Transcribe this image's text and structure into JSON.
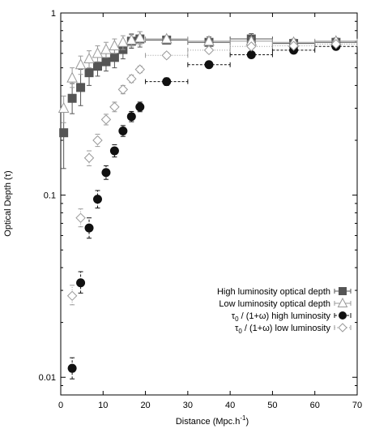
{
  "chart_data": {
    "type": "scatter",
    "xlabel": "Distance (Mpc.h",
    "xlabel_sup": "-1",
    "xlabel_close": ")",
    "ylabel": "Optical Depth (τ)",
    "xlim": [
      0,
      70
    ],
    "ylim": [
      0.008,
      1
    ],
    "yscale": "log",
    "x_ticks": [
      "0",
      "10",
      "20",
      "30",
      "40",
      "50",
      "60",
      "70"
    ],
    "y_ticks": [
      "0.01",
      "0.1",
      "1"
    ],
    "legend_position": "lower-right",
    "series": [
      {
        "name": "High luminosity optical depth",
        "marker": "filled-square",
        "color": "#555555",
        "line": "solid",
        "points": [
          {
            "x": 0.7,
            "y": 0.22,
            "ylo": 0.14,
            "yhi": 0.29
          },
          {
            "x": 2.7,
            "y": 0.34,
            "ylo": 0.28,
            "yhi": 0.41
          },
          {
            "x": 4.7,
            "y": 0.39,
            "ylo": 0.31,
            "yhi": 0.49
          },
          {
            "x": 6.7,
            "y": 0.47,
            "ylo": 0.4,
            "yhi": 0.55
          },
          {
            "x": 8.7,
            "y": 0.51,
            "ylo": 0.45,
            "yhi": 0.58
          },
          {
            "x": 10.7,
            "y": 0.54,
            "ylo": 0.48,
            "yhi": 0.61
          },
          {
            "x": 12.7,
            "y": 0.57,
            "ylo": 0.5,
            "yhi": 0.63
          },
          {
            "x": 14.7,
            "y": 0.63,
            "ylo": 0.56,
            "yhi": 0.7
          },
          {
            "x": 16.7,
            "y": 0.7,
            "ylo": 0.64,
            "yhi": 0.76
          },
          {
            "x": 18.7,
            "y": 0.72,
            "ylo": 0.65,
            "yhi": 0.79
          },
          {
            "x": 25,
            "y": 0.71,
            "xlo": 20,
            "xhi": 30,
            "ylo": 0.68,
            "yhi": 0.74
          },
          {
            "x": 35,
            "y": 0.69,
            "xlo": 30,
            "xhi": 40,
            "ylo": 0.64,
            "yhi": 0.74
          },
          {
            "x": 45,
            "y": 0.72,
            "xlo": 40,
            "xhi": 50,
            "ylo": 0.67,
            "yhi": 0.77
          },
          {
            "x": 55,
            "y": 0.68,
            "xlo": 50,
            "xhi": 60,
            "ylo": 0.64,
            "yhi": 0.72
          },
          {
            "x": 65,
            "y": 0.69,
            "xlo": 60,
            "xhi": 70,
            "ylo": 0.65,
            "yhi": 0.73
          }
        ]
      },
      {
        "name": "Low luminosity optical depth",
        "marker": "open-triangle",
        "color": "#999999",
        "line": "solid",
        "points": [
          {
            "x": 0.7,
            "y": 0.3,
            "ylo": 0.25,
            "yhi": 0.35
          },
          {
            "x": 2.7,
            "y": 0.44,
            "ylo": 0.39,
            "yhi": 0.5
          },
          {
            "x": 4.7,
            "y": 0.52,
            "ylo": 0.46,
            "yhi": 0.58
          },
          {
            "x": 6.7,
            "y": 0.56,
            "ylo": 0.5,
            "yhi": 0.62
          },
          {
            "x": 8.7,
            "y": 0.6,
            "ylo": 0.54,
            "yhi": 0.66
          },
          {
            "x": 10.7,
            "y": 0.63,
            "ylo": 0.57,
            "yhi": 0.69
          },
          {
            "x": 12.7,
            "y": 0.66,
            "ylo": 0.6,
            "yhi": 0.72
          },
          {
            "x": 14.7,
            "y": 0.69,
            "ylo": 0.63,
            "yhi": 0.75
          },
          {
            "x": 16.7,
            "y": 0.71,
            "ylo": 0.65,
            "yhi": 0.77
          },
          {
            "x": 18.7,
            "y": 0.73,
            "ylo": 0.67,
            "yhi": 0.79
          },
          {
            "x": 25,
            "y": 0.72,
            "xlo": 20,
            "xhi": 30,
            "ylo": 0.69,
            "yhi": 0.75
          },
          {
            "x": 35,
            "y": 0.7,
            "xlo": 30,
            "xhi": 40,
            "ylo": 0.67,
            "yhi": 0.73
          },
          {
            "x": 45,
            "y": 0.7,
            "xlo": 40,
            "xhi": 50,
            "ylo": 0.67,
            "yhi": 0.73
          },
          {
            "x": 55,
            "y": 0.69,
            "xlo": 50,
            "xhi": 60,
            "ylo": 0.66,
            "yhi": 0.72
          },
          {
            "x": 65,
            "y": 0.7,
            "xlo": 60,
            "xhi": 70,
            "ylo": 0.67,
            "yhi": 0.73
          }
        ]
      },
      {
        "name": "τ0 / (1+ω) high luminosity",
        "legend_main": "τ",
        "legend_sub": "0",
        "legend_rest": " / (1+ω) high luminosity",
        "marker": "filled-circle",
        "color": "#111111",
        "line": "dashed",
        "points": [
          {
            "x": 2.7,
            "y": 0.0112,
            "ylo": 0.0098,
            "yhi": 0.0128
          },
          {
            "x": 4.7,
            "y": 0.033,
            "ylo": 0.029,
            "yhi": 0.038
          },
          {
            "x": 6.7,
            "y": 0.066,
            "ylo": 0.058,
            "yhi": 0.075
          },
          {
            "x": 8.7,
            "y": 0.095,
            "ylo": 0.085,
            "yhi": 0.106
          },
          {
            "x": 10.7,
            "y": 0.133,
            "ylo": 0.122,
            "yhi": 0.145
          },
          {
            "x": 12.7,
            "y": 0.175,
            "ylo": 0.162,
            "yhi": 0.189
          },
          {
            "x": 14.7,
            "y": 0.225,
            "ylo": 0.21,
            "yhi": 0.241
          },
          {
            "x": 16.7,
            "y": 0.27,
            "ylo": 0.253,
            "yhi": 0.288
          },
          {
            "x": 18.7,
            "y": 0.305,
            "ylo": 0.287,
            "yhi": 0.324
          },
          {
            "x": 25,
            "y": 0.42,
            "xlo": 20,
            "xhi": 30,
            "ylo": 0.4,
            "yhi": 0.44
          },
          {
            "x": 35,
            "y": 0.52,
            "xlo": 30,
            "xhi": 40,
            "ylo": 0.5,
            "yhi": 0.54
          },
          {
            "x": 45,
            "y": 0.59,
            "xlo": 40,
            "xhi": 50,
            "ylo": 0.57,
            "yhi": 0.61
          },
          {
            "x": 55,
            "y": 0.625,
            "xlo": 50,
            "xhi": 60,
            "ylo": 0.6,
            "yhi": 0.65
          },
          {
            "x": 65,
            "y": 0.655,
            "xlo": 60,
            "xhi": 70,
            "ylo": 0.63,
            "yhi": 0.68
          }
        ]
      },
      {
        "name": "τ0 / (1+ω) low luminosity",
        "legend_main": "τ",
        "legend_sub": "0",
        "legend_rest": " / (1+ω) low luminosity",
        "marker": "open-diamond",
        "color": "#999999",
        "line": "dotted",
        "points": [
          {
            "x": 2.7,
            "y": 0.028,
            "ylo": 0.025,
            "yhi": 0.032
          },
          {
            "x": 4.7,
            "y": 0.075,
            "ylo": 0.067,
            "yhi": 0.084
          },
          {
            "x": 6.7,
            "y": 0.16,
            "ylo": 0.145,
            "yhi": 0.175
          },
          {
            "x": 8.7,
            "y": 0.2,
            "ylo": 0.185,
            "yhi": 0.216
          },
          {
            "x": 10.7,
            "y": 0.26,
            "ylo": 0.243,
            "yhi": 0.278
          },
          {
            "x": 12.7,
            "y": 0.305,
            "ylo": 0.287,
            "yhi": 0.324
          },
          {
            "x": 14.7,
            "y": 0.38,
            "ylo": 0.36,
            "yhi": 0.4
          },
          {
            "x": 16.7,
            "y": 0.435,
            "ylo": 0.415,
            "yhi": 0.456
          },
          {
            "x": 18.7,
            "y": 0.49,
            "ylo": 0.47,
            "yhi": 0.51
          },
          {
            "x": 25,
            "y": 0.585,
            "xlo": 20,
            "xhi": 30,
            "ylo": 0.565,
            "yhi": 0.605
          },
          {
            "x": 35,
            "y": 0.625,
            "xlo": 30,
            "xhi": 40,
            "ylo": 0.605,
            "yhi": 0.645
          },
          {
            "x": 45,
            "y": 0.655,
            "xlo": 40,
            "xhi": 50,
            "ylo": 0.635,
            "yhi": 0.675
          },
          {
            "x": 55,
            "y": 0.66,
            "xlo": 50,
            "xhi": 60,
            "ylo": 0.64,
            "yhi": 0.68
          },
          {
            "x": 65,
            "y": 0.675,
            "xlo": 60,
            "xhi": 70,
            "ylo": 0.655,
            "yhi": 0.695
          }
        ]
      }
    ]
  }
}
